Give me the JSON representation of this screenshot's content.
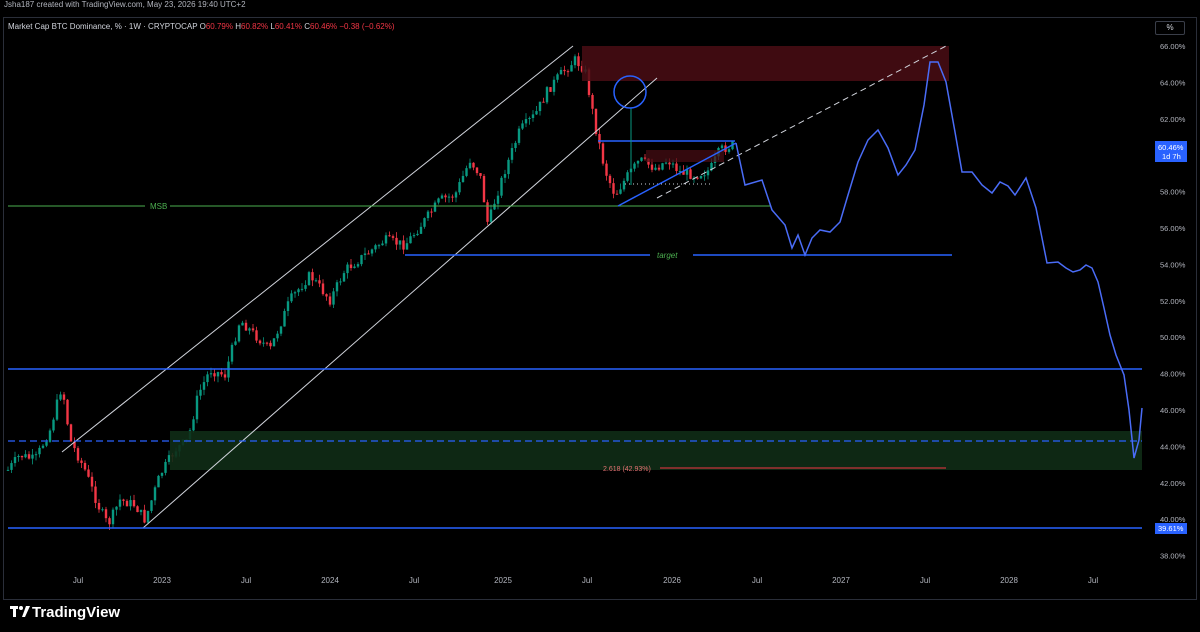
{
  "header": {
    "created_by": "Jsha187 created with TradingView.com, May 23, 2026 19:40 UTC+2"
  },
  "legend": {
    "symbol": "Market Cap BTC Dominance, % · 1W · CRYPTOCAP",
    "open_label": "O",
    "open": "60.79%",
    "high_label": "H",
    "high": "60.82%",
    "low_label": "L",
    "low": "60.41%",
    "close_label": "C",
    "close": "60.46%",
    "change": "−0.38 (−0.62%)"
  },
  "scale_button": "%",
  "price_axis": {
    "ticks": [
      "66.00%",
      "64.00%",
      "62.00%",
      "60.00%",
      "58.00%",
      "56.00%",
      "54.00%",
      "52.00%",
      "50.00%",
      "48.00%",
      "46.00%",
      "44.00%",
      "42.00%",
      "40.00%",
      "38.00%"
    ],
    "current_price": "60.46%",
    "countdown": "1d 7h",
    "line_label": "39.61%"
  },
  "time_axis": {
    "ticks": [
      "Jul",
      "2023",
      "Jul",
      "2024",
      "Jul",
      "2025",
      "Jul",
      "2026",
      "Jul",
      "2027",
      "Jul",
      "2028",
      "Jul"
    ]
  },
  "annotations": {
    "msb": "MSB",
    "target": "target",
    "fib": "2.618 (42.93%)"
  },
  "colors": {
    "up": "#089981",
    "down": "#f23645",
    "blue": "#2962ff",
    "path": "#4a6cf7",
    "green": "#4caf50",
    "channel": "#d1d4dc",
    "zone_red": "#4a0d14",
    "zone_green": "#0f2c16"
  },
  "footer": {
    "brand": "TradingView"
  }
}
